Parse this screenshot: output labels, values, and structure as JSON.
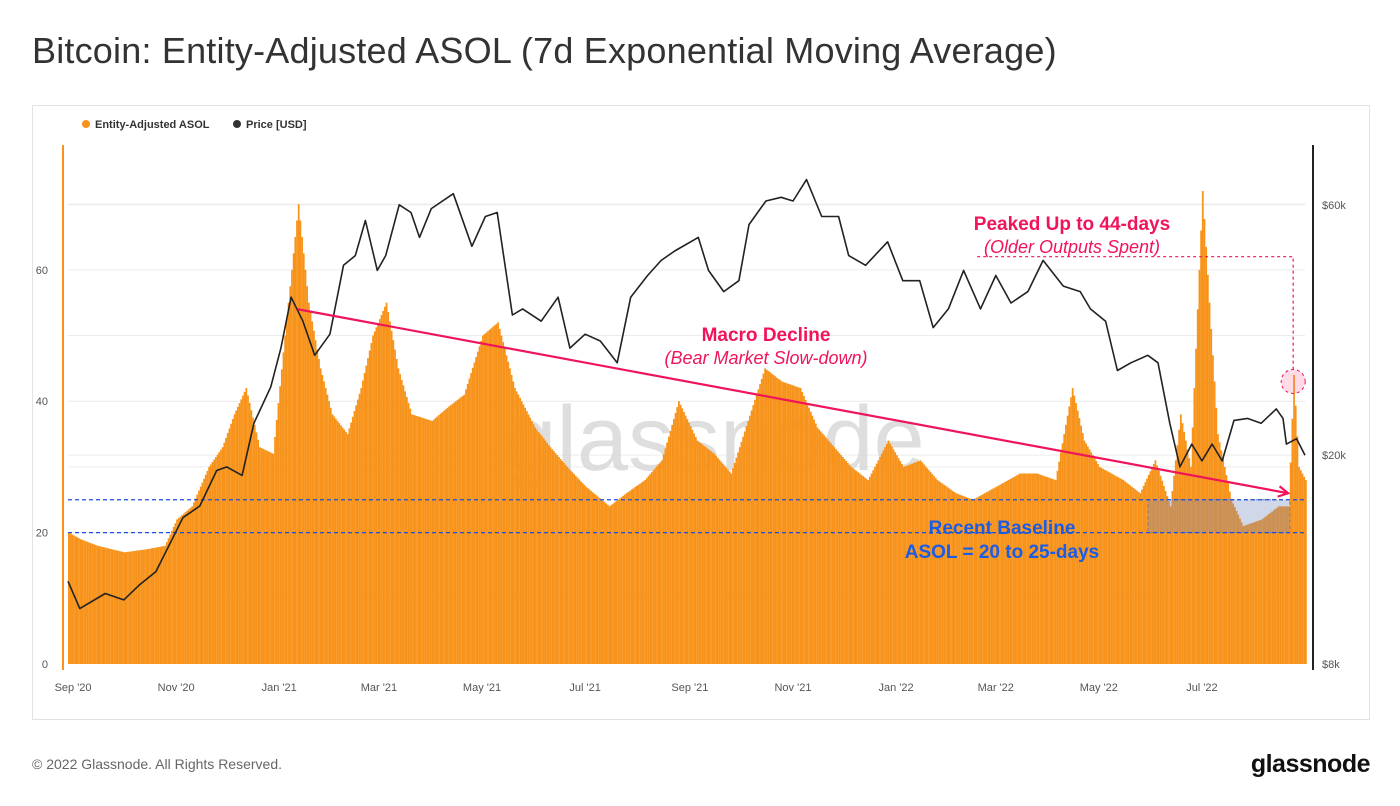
{
  "title": "Bitcoin: Entity-Adjusted ASOL (7d Exponential Moving Average)",
  "footer": "© 2022 Glassnode. All Rights Reserved.",
  "logo": "glassnode",
  "watermark": "glassnode",
  "colors": {
    "asol": "#f7931a",
    "price": "#222222",
    "annotation_red": "#f0145a",
    "annotation_blue": "#1a5ce6"
  },
  "chart_data": {
    "type": "bar",
    "title": "Bitcoin: Entity-Adjusted ASOL (7d Exponential Moving Average)",
    "legend": {
      "placement": "top-left",
      "entries": [
        "Entity-Adjusted ASOL",
        "Price [USD]"
      ]
    },
    "x_ticks": [
      "Sep '20",
      "Nov '20",
      "Jan '21",
      "Mar '21",
      "May '21",
      "Jul '21",
      "Sep '21",
      "Nov '21",
      "Jan '22",
      "Mar '22",
      "May '22",
      "Jul '22"
    ],
    "x_tick_dates": [
      "2020-09-01",
      "2020-11-01",
      "2021-01-01",
      "2021-03-01",
      "2021-05-01",
      "2021-07-01",
      "2021-09-01",
      "2021-11-01",
      "2022-01-01",
      "2022-03-01",
      "2022-05-01",
      "2022-07-01"
    ],
    "xlim": [
      "2020-08-29",
      "2022-08-31"
    ],
    "y_left": {
      "ticks": [
        0,
        20,
        40,
        60
      ],
      "ylim": [
        0,
        79
      ],
      "scale": "linear"
    },
    "y_right": {
      "ticks": [
        8000,
        20000,
        60000
      ],
      "tick_labels": [
        "$8k",
        "$20k",
        "$60k"
      ],
      "ylim": [
        8000,
        78000
      ],
      "scale": "log"
    },
    "grid": true,
    "series": [
      {
        "name": "Entity-Adjusted ASOL",
        "type": "bar",
        "axis": "left",
        "points": [
          [
            "2020-08-29",
            20
          ],
          [
            "2020-09-05",
            19
          ],
          [
            "2020-09-15",
            18
          ],
          [
            "2020-10-01",
            17
          ],
          [
            "2020-10-15",
            17.5
          ],
          [
            "2020-10-25",
            18
          ],
          [
            "2020-11-01",
            22
          ],
          [
            "2020-11-10",
            24
          ],
          [
            "2020-11-20",
            30
          ],
          [
            "2020-11-28",
            33
          ],
          [
            "2020-12-05",
            38
          ],
          [
            "2020-12-12",
            42
          ],
          [
            "2020-12-20",
            33
          ],
          [
            "2020-12-28",
            32
          ],
          [
            "2021-01-04",
            50
          ],
          [
            "2021-01-08",
            60
          ],
          [
            "2021-01-12",
            70
          ],
          [
            "2021-01-18",
            55
          ],
          [
            "2021-01-25",
            45
          ],
          [
            "2021-02-01",
            38
          ],
          [
            "2021-02-10",
            35
          ],
          [
            "2021-02-18",
            42
          ],
          [
            "2021-02-25",
            50
          ],
          [
            "2021-03-05",
            55
          ],
          [
            "2021-03-12",
            45
          ],
          [
            "2021-03-20",
            38
          ],
          [
            "2021-04-01",
            37
          ],
          [
            "2021-04-10",
            39
          ],
          [
            "2021-04-20",
            41
          ],
          [
            "2021-05-01",
            50
          ],
          [
            "2021-05-10",
            52
          ],
          [
            "2021-05-20",
            42
          ],
          [
            "2021-06-01",
            36
          ],
          [
            "2021-06-10",
            33
          ],
          [
            "2021-06-20",
            30
          ],
          [
            "2021-07-01",
            27
          ],
          [
            "2021-07-15",
            24
          ],
          [
            "2021-07-25",
            26
          ],
          [
            "2021-08-05",
            28
          ],
          [
            "2021-08-15",
            31
          ],
          [
            "2021-08-25",
            40
          ],
          [
            "2021-09-05",
            34
          ],
          [
            "2021-09-15",
            32
          ],
          [
            "2021-09-25",
            29
          ],
          [
            "2021-10-05",
            37
          ],
          [
            "2021-10-15",
            45
          ],
          [
            "2021-10-25",
            43
          ],
          [
            "2021-11-05",
            42
          ],
          [
            "2021-11-15",
            36
          ],
          [
            "2021-11-25",
            33
          ],
          [
            "2021-12-05",
            30
          ],
          [
            "2021-12-15",
            28
          ],
          [
            "2021-12-27",
            34
          ],
          [
            "2022-01-05",
            30
          ],
          [
            "2022-01-15",
            31
          ],
          [
            "2022-01-25",
            28
          ],
          [
            "2022-02-05",
            26
          ],
          [
            "2022-02-15",
            25
          ],
          [
            "2022-03-01",
            27
          ],
          [
            "2022-03-15",
            29
          ],
          [
            "2022-03-25",
            29
          ],
          [
            "2022-04-05",
            28
          ],
          [
            "2022-04-15",
            42
          ],
          [
            "2022-04-22",
            34
          ],
          [
            "2022-05-01",
            30
          ],
          [
            "2022-05-15",
            28
          ],
          [
            "2022-05-25",
            26
          ],
          [
            "2022-06-03",
            31
          ],
          [
            "2022-06-12",
            24
          ],
          [
            "2022-06-18",
            38
          ],
          [
            "2022-06-24",
            30
          ],
          [
            "2022-07-01",
            72
          ],
          [
            "2022-07-05",
            55
          ],
          [
            "2022-07-10",
            35
          ],
          [
            "2022-07-18",
            25
          ],
          [
            "2022-07-25",
            21
          ],
          [
            "2022-08-05",
            22
          ],
          [
            "2022-08-15",
            24
          ],
          [
            "2022-08-21",
            24
          ],
          [
            "2022-08-24",
            44
          ],
          [
            "2022-08-27",
            30
          ],
          [
            "2022-08-31",
            28
          ]
        ]
      },
      {
        "name": "Price [USD]",
        "type": "line",
        "axis": "right",
        "points": [
          [
            "2020-08-29",
            11500
          ],
          [
            "2020-09-05",
            10200
          ],
          [
            "2020-09-20",
            10900
          ],
          [
            "2020-10-01",
            10600
          ],
          [
            "2020-10-10",
            11300
          ],
          [
            "2020-10-20",
            12000
          ],
          [
            "2020-10-28",
            13500
          ],
          [
            "2020-11-05",
            15200
          ],
          [
            "2020-11-15",
            16000
          ],
          [
            "2020-11-25",
            18700
          ],
          [
            "2020-12-01",
            19000
          ],
          [
            "2020-12-10",
            18300
          ],
          [
            "2020-12-17",
            23000
          ],
          [
            "2020-12-27",
            27000
          ],
          [
            "2021-01-02",
            32000
          ],
          [
            "2021-01-08",
            40000
          ],
          [
            "2021-01-15",
            36000
          ],
          [
            "2021-01-22",
            31000
          ],
          [
            "2021-01-31",
            34000
          ],
          [
            "2021-02-08",
            46000
          ],
          [
            "2021-02-15",
            48000
          ],
          [
            "2021-02-21",
            56000
          ],
          [
            "2021-02-28",
            45000
          ],
          [
            "2021-03-05",
            48000
          ],
          [
            "2021-03-13",
            60000
          ],
          [
            "2021-03-20",
            58000
          ],
          [
            "2021-03-25",
            52000
          ],
          [
            "2021-04-01",
            59000
          ],
          [
            "2021-04-14",
            63000
          ],
          [
            "2021-04-25",
            50000
          ],
          [
            "2021-05-03",
            57000
          ],
          [
            "2021-05-10",
            58000
          ],
          [
            "2021-05-19",
            37000
          ],
          [
            "2021-05-25",
            38000
          ],
          [
            "2021-06-05",
            36000
          ],
          [
            "2021-06-15",
            40000
          ],
          [
            "2021-06-22",
            32000
          ],
          [
            "2021-07-01",
            34000
          ],
          [
            "2021-07-10",
            33000
          ],
          [
            "2021-07-20",
            30000
          ],
          [
            "2021-07-28",
            40000
          ],
          [
            "2021-08-07",
            44000
          ],
          [
            "2021-08-15",
            47000
          ],
          [
            "2021-08-23",
            49000
          ],
          [
            "2021-09-06",
            52000
          ],
          [
            "2021-09-12",
            45000
          ],
          [
            "2021-09-21",
            41000
          ],
          [
            "2021-09-30",
            43000
          ],
          [
            "2021-10-06",
            55000
          ],
          [
            "2021-10-16",
            61000
          ],
          [
            "2021-10-25",
            62000
          ],
          [
            "2021-11-01",
            61000
          ],
          [
            "2021-11-09",
            67000
          ],
          [
            "2021-11-18",
            57000
          ],
          [
            "2021-11-28",
            57000
          ],
          [
            "2021-12-04",
            48000
          ],
          [
            "2021-12-14",
            46000
          ],
          [
            "2021-12-27",
            51000
          ],
          [
            "2022-01-05",
            43000
          ],
          [
            "2022-01-15",
            43000
          ],
          [
            "2022-01-23",
            35000
          ],
          [
            "2022-02-01",
            38000
          ],
          [
            "2022-02-10",
            45000
          ],
          [
            "2022-02-20",
            38000
          ],
          [
            "2022-03-01",
            44000
          ],
          [
            "2022-03-10",
            39000
          ],
          [
            "2022-03-20",
            41000
          ],
          [
            "2022-03-29",
            47000
          ],
          [
            "2022-04-10",
            42000
          ],
          [
            "2022-04-20",
            41000
          ],
          [
            "2022-04-26",
            38000
          ],
          [
            "2022-05-05",
            36000
          ],
          [
            "2022-05-12",
            29000
          ],
          [
            "2022-05-20",
            30000
          ],
          [
            "2022-05-30",
            31000
          ],
          [
            "2022-06-05",
            30000
          ],
          [
            "2022-06-12",
            23000
          ],
          [
            "2022-06-18",
            19000
          ],
          [
            "2022-06-25",
            21000
          ],
          [
            "2022-07-01",
            19500
          ],
          [
            "2022-07-07",
            21000
          ],
          [
            "2022-07-13",
            19500
          ],
          [
            "2022-07-20",
            23300
          ],
          [
            "2022-07-28",
            23500
          ],
          [
            "2022-08-05",
            23000
          ],
          [
            "2022-08-14",
            24500
          ],
          [
            "2022-08-18",
            23500
          ],
          [
            "2022-08-20",
            21000
          ],
          [
            "2022-08-26",
            21500
          ],
          [
            "2022-08-31",
            20000
          ]
        ]
      }
    ],
    "annotations": {
      "macro_decline": {
        "title": "Macro Decline",
        "subtitle": "(Bear Market Slow-down)",
        "arrow_from": [
          "2021-01-12",
          54
        ],
        "arrow_to": [
          "2022-08-21",
          26
        ]
      },
      "baseline": {
        "title": "Recent Baseline",
        "subtitle": "ASOL = 20 to 25-days",
        "levels": [
          20,
          25
        ],
        "highlight_range": [
          "2022-05-30",
          "2022-08-22"
        ]
      },
      "peak": {
        "title": "Peaked Up to 44-days",
        "subtitle": "(Older Outputs Spent)",
        "point": [
          "2022-08-24",
          43
        ],
        "leader_from_date": "2022-02-18",
        "leader_level": 62
      }
    }
  }
}
